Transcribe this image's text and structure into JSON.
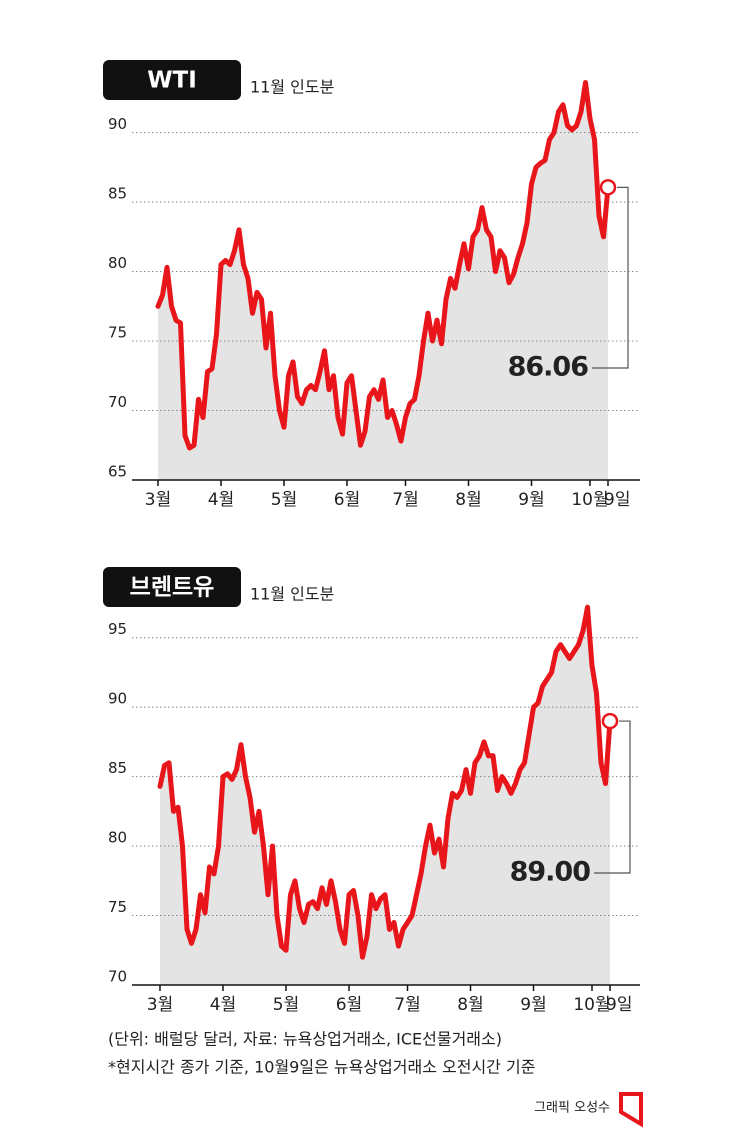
{
  "chart_data": [
    {
      "type": "line",
      "title": "WTI",
      "subtitle": "11월 인도분",
      "color": "#e8151b",
      "fill_color": "#e4e4e4",
      "categories": [
        "3월",
        null,
        null,
        null,
        null,
        null,
        null,
        null,
        null,
        null,
        null,
        null,
        null,
        null,
        "4월",
        null,
        null,
        null,
        null,
        null,
        null,
        null,
        null,
        null,
        null,
        null,
        null,
        null,
        "5월",
        null,
        null,
        null,
        null,
        null,
        null,
        null,
        null,
        null,
        null,
        null,
        null,
        null,
        "6월",
        null,
        null,
        null,
        null,
        null,
        null,
        null,
        null,
        null,
        null,
        null,
        null,
        "7월",
        null,
        null,
        null,
        null,
        null,
        null,
        null,
        null,
        null,
        null,
        null,
        null,
        null,
        "8월",
        null,
        null,
        null,
        null,
        null,
        null,
        null,
        null,
        null,
        null,
        null,
        null,
        null,
        "9월",
        null,
        null,
        null,
        null,
        null,
        null,
        null,
        null,
        null,
        null,
        null,
        null,
        "10월",
        null,
        null,
        null,
        "9일"
      ],
      "values": [
        77.5,
        78.3,
        80.3,
        77.5,
        76.5,
        76.3,
        68.2,
        67.3,
        67.5,
        70.8,
        69.5,
        72.8,
        73,
        75.5,
        80.5,
        80.8,
        80.5,
        81.5,
        83,
        80.5,
        79.5,
        77,
        78.5,
        78,
        74.5,
        77,
        72.5,
        70,
        68.8,
        72.5,
        73.5,
        71,
        70.5,
        71.5,
        71.8,
        71.5,
        72.8,
        74.3,
        71.5,
        72.5,
        69.5,
        68.3,
        72,
        72.5,
        70,
        67.5,
        68.5,
        71,
        71.5,
        70.8,
        72.2,
        69.5,
        70,
        69,
        67.8,
        69.5,
        70.5,
        70.8,
        72.5,
        75,
        77,
        75,
        76.5,
        74.8,
        78,
        79.5,
        78.8,
        80.5,
        82,
        80.2,
        82.5,
        83,
        84.6,
        83,
        82.5,
        80,
        81.5,
        81,
        79.2,
        79.8,
        81,
        82,
        83.5,
        86.3,
        87.5,
        87.8,
        88,
        89.5,
        90,
        91.5,
        92,
        90.5,
        90.2,
        90.5,
        91.5,
        93.6,
        91,
        89.5,
        84,
        82.5,
        86.06
      ],
      "value_labels": [
        null,
        null,
        null,
        null,
        null,
        null,
        null,
        null,
        null,
        null,
        null,
        null,
        null,
        null,
        null,
        null,
        null,
        null,
        null,
        null,
        null,
        null,
        null,
        null,
        null,
        null,
        null,
        null,
        null,
        null,
        null,
        null,
        null,
        null,
        null,
        null,
        null,
        null,
        null,
        null,
        null,
        null,
        null,
        null,
        null,
        null,
        null,
        null,
        null,
        null,
        null,
        null,
        null,
        null,
        null,
        null,
        null,
        null,
        null,
        null,
        null,
        null,
        null,
        null,
        null,
        null,
        null,
        null,
        null,
        null,
        null,
        null,
        null,
        null,
        null,
        null,
        null,
        null,
        null,
        null,
        null,
        null,
        null,
        null,
        null,
        null,
        null,
        null,
        null,
        null,
        null,
        null,
        null,
        null,
        null,
        null,
        null,
        null,
        null,
        null,
        "86.06"
      ],
      "ylim": [
        65,
        94
      ],
      "yticks": [
        65,
        70,
        75,
        80,
        85,
        90
      ],
      "grid": true
    },
    {
      "type": "line",
      "title": "브렌트유",
      "subtitle": "11월 인도분",
      "color": "#e8151b",
      "fill_color": "#e4e4e4",
      "categories": [
        "3월",
        null,
        null,
        null,
        null,
        null,
        null,
        null,
        null,
        null,
        null,
        null,
        null,
        null,
        "4월",
        null,
        null,
        null,
        null,
        null,
        null,
        null,
        null,
        null,
        null,
        null,
        null,
        null,
        "5월",
        null,
        null,
        null,
        null,
        null,
        null,
        null,
        null,
        null,
        null,
        null,
        null,
        null,
        "6월",
        null,
        null,
        null,
        null,
        null,
        null,
        null,
        null,
        null,
        null,
        null,
        null,
        "7월",
        null,
        null,
        null,
        null,
        null,
        null,
        null,
        null,
        null,
        null,
        null,
        null,
        null,
        "8월",
        null,
        null,
        null,
        null,
        null,
        null,
        null,
        null,
        null,
        null,
        null,
        null,
        null,
        "9월",
        null,
        null,
        null,
        null,
        null,
        null,
        null,
        null,
        null,
        null,
        null,
        null,
        "10월",
        null,
        null,
        null,
        "9일"
      ],
      "values": [
        84.3,
        85.8,
        86,
        82.5,
        82.8,
        80,
        74,
        73,
        74,
        76.5,
        75.2,
        78.5,
        78,
        80,
        85,
        85.2,
        84.8,
        85.5,
        87.3,
        85,
        83.5,
        81,
        82.5,
        80,
        76.5,
        80,
        75,
        72.8,
        72.5,
        76.5,
        77.5,
        75.5,
        74.5,
        75.8,
        76,
        75.5,
        77,
        75.8,
        77.5,
        76,
        74,
        73,
        76.5,
        76.8,
        75,
        72,
        73.5,
        76.5,
        75.5,
        76.2,
        76.5,
        74,
        74.5,
        72.8,
        74,
        74.5,
        75,
        76.5,
        78,
        80,
        81.5,
        79.5,
        80.5,
        78.5,
        82,
        83.8,
        83.5,
        84,
        85.5,
        83.8,
        86,
        86.5,
        87.5,
        86.5,
        86.5,
        84,
        85,
        84.5,
        83.8,
        84.5,
        85.5,
        86,
        88,
        90,
        90.3,
        91.5,
        92,
        92.5,
        94,
        94.5,
        94,
        93.5,
        94,
        94.5,
        95.5,
        97.2,
        93,
        91,
        86,
        84.5,
        89.0
      ],
      "value_labels": [
        null,
        null,
        null,
        null,
        null,
        null,
        null,
        null,
        null,
        null,
        null,
        null,
        null,
        null,
        null,
        null,
        null,
        null,
        null,
        null,
        null,
        null,
        null,
        null,
        null,
        null,
        null,
        null,
        null,
        null,
        null,
        null,
        null,
        null,
        null,
        null,
        null,
        null,
        null,
        null,
        null,
        null,
        null,
        null,
        null,
        null,
        null,
        null,
        null,
        null,
        null,
        null,
        null,
        null,
        null,
        null,
        null,
        null,
        null,
        null,
        null,
        null,
        null,
        null,
        null,
        null,
        null,
        null,
        null,
        null,
        null,
        null,
        null,
        null,
        null,
        null,
        null,
        null,
        null,
        null,
        null,
        null,
        null,
        null,
        null,
        null,
        null,
        null,
        null,
        null,
        null,
        null,
        null,
        null,
        null,
        null,
        null,
        null,
        null,
        null,
        "89.00"
      ],
      "ylim": [
        70,
        97.5
      ],
      "yticks": [
        70,
        75,
        80,
        85,
        90,
        95
      ],
      "grid": true
    }
  ],
  "notes": [
    "(단위: 배럴당 달러, 자료: 뉴욕상업거래소, ICE선물거래소)",
    "*현지시간 종가 기준, 10월9일은 뉴욕상업거래소 오전시간 기준"
  ],
  "credit": "그래픽 오성수"
}
